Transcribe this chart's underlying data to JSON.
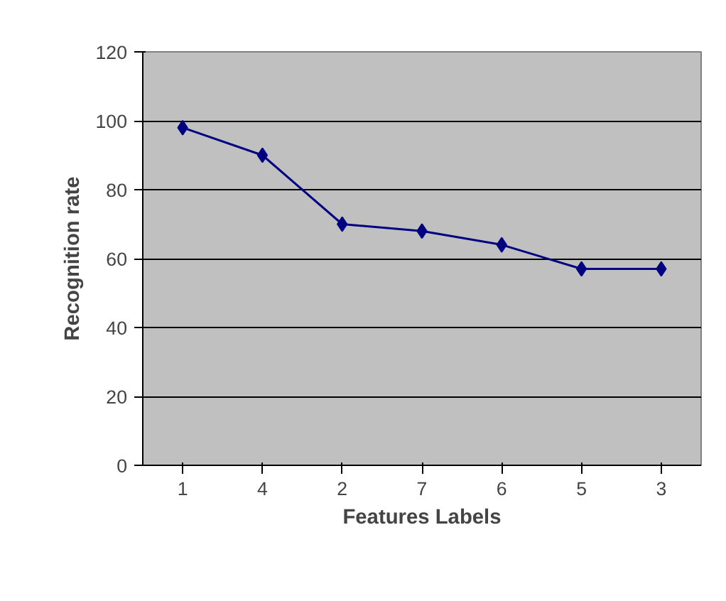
{
  "chart_data": {
    "type": "line",
    "xlabel": "Features Labels",
    "ylabel": "Recognition rate",
    "categories": [
      "1",
      "4",
      "2",
      "7",
      "6",
      "5",
      "3"
    ],
    "series": [
      {
        "color": "#000080",
        "values": [
          98,
          90,
          70,
          68,
          64,
          57,
          57
        ]
      }
    ],
    "ylim": [
      0,
      120
    ],
    "yticks": [
      0,
      20,
      40,
      60,
      80,
      100,
      120
    ],
    "grid": "y",
    "marker": "diamond",
    "line_style": "solid"
  }
}
